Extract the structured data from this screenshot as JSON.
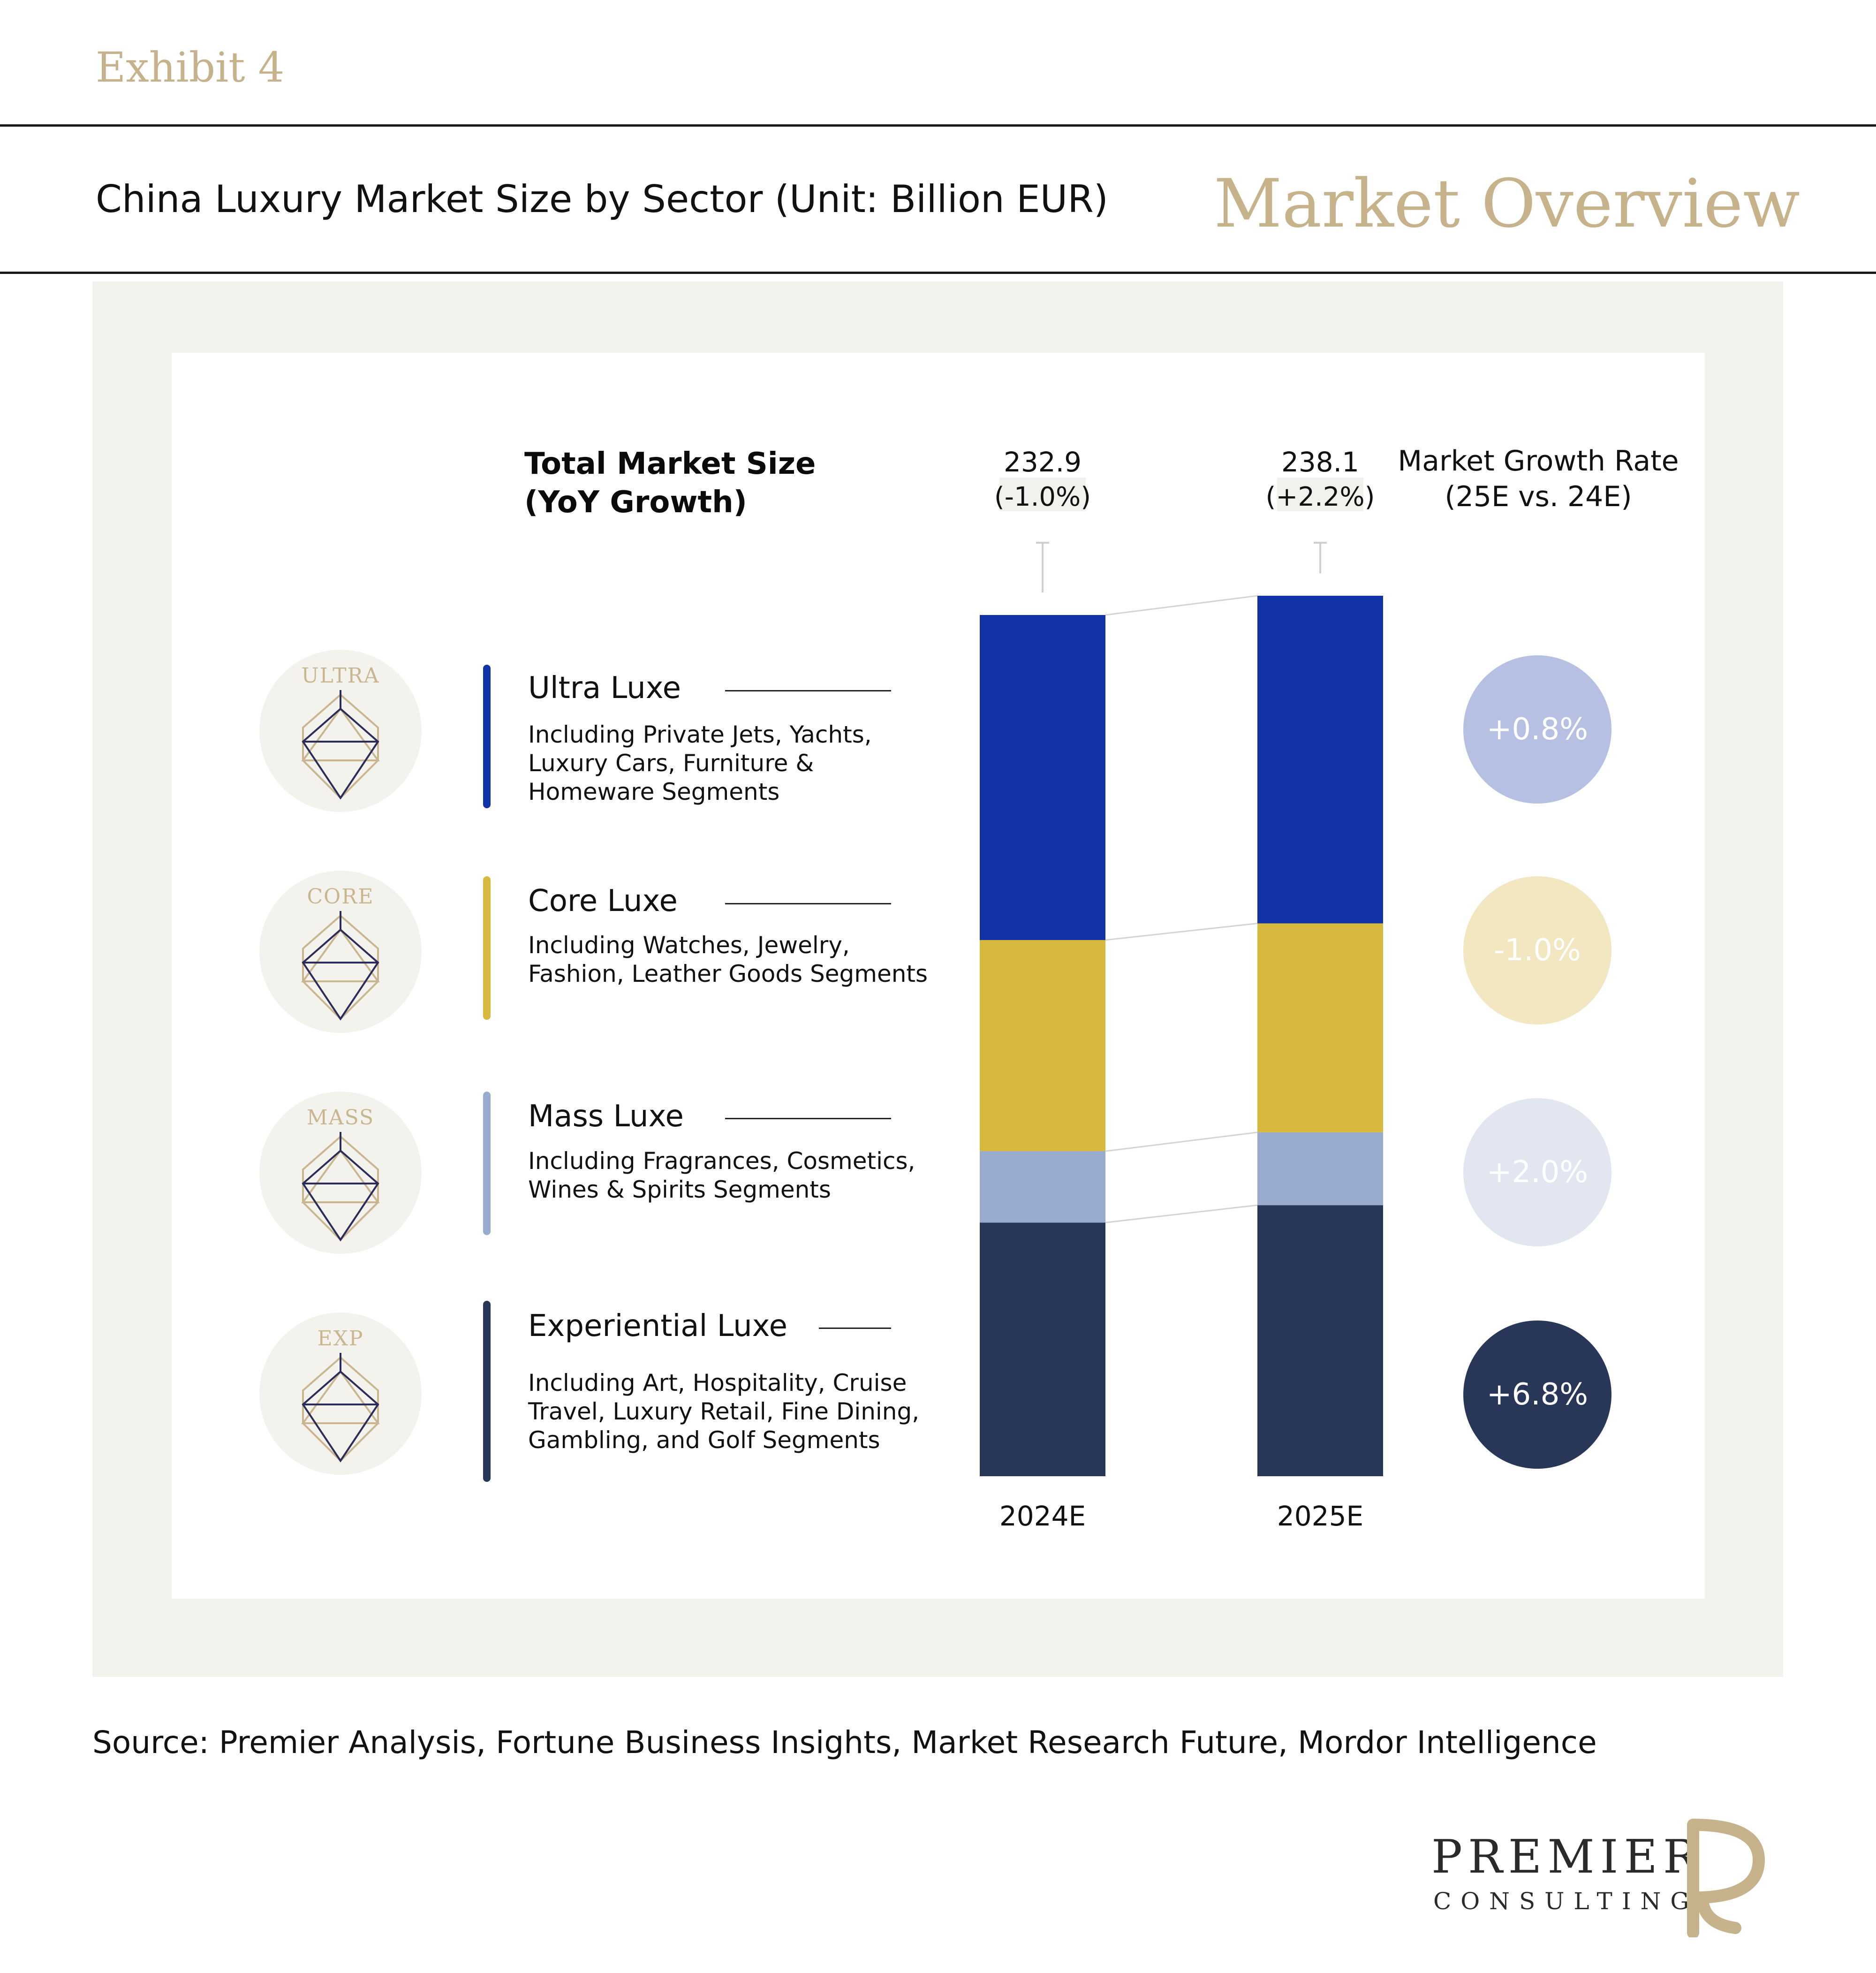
{
  "header": {
    "exhibit": "Exhibit 4",
    "subtitle": "China Luxury Market Size by Sector (Unit: Billion EUR)",
    "section": "Market Overview"
  },
  "legend_heading": {
    "line1": "Total Market Size",
    "line2": "(YoY Growth)"
  },
  "growth_heading": {
    "line1": "Market Growth Rate",
    "line2": "(25E vs. 24E)"
  },
  "segments": [
    {
      "tag": "ULTRA",
      "title": "Ultra Luxe",
      "desc": [
        "Including Private Jets, Yachts,",
        "Luxury Cars, Furniture &",
        "Homeware Segments"
      ],
      "growth": "+0.8%",
      "color": "#1233a8",
      "growth_color": "#b6c0e3",
      "icon": "diamond-icon"
    },
    {
      "tag": "CORE",
      "title": "Core Luxe",
      "desc": [
        "Including Watches, Jewelry,",
        "Fashion, Leather Goods Segments"
      ],
      "growth": "-1.0%",
      "color": "#d8b940",
      "growth_color": "#f2e7c1",
      "icon": "diamond-icon"
    },
    {
      "tag": "MASS",
      "title": "Mass Luxe",
      "desc": [
        "Including Fragrances, Cosmetics,",
        "Wines & Spirits Segments"
      ],
      "growth": "+2.0%",
      "color": "#9aabd0",
      "growth_color": "#e2e6f1",
      "icon": "diamond-icon"
    },
    {
      "tag": "EXP",
      "title": "Experiential Luxe",
      "desc": [
        "Including Art, Hospitality, Cruise",
        "Travel, Luxury Retail, Fine Dining,",
        "Gambling, and Golf Segments"
      ],
      "growth": "+6.8%",
      "color": "#283757",
      "growth_color": "#283757",
      "icon": "diamond-icon"
    }
  ],
  "chart_data": {
    "type": "bar",
    "stacked": true,
    "categories": [
      "2024E",
      "2025E"
    ],
    "totals": [
      232.9,
      238.1
    ],
    "total_labels": [
      "232.9",
      "238.1"
    ],
    "yoy_labels": [
      "(-1.0%)",
      "(+2.2%)"
    ],
    "series": [
      {
        "name": "Experiential Luxe",
        "values": [
          68.6,
          73.3
        ],
        "color": "#283757"
      },
      {
        "name": "Mass Luxe",
        "values": [
          19.3,
          19.7
        ],
        "color": "#9aabd0"
      },
      {
        "name": "Core Luxe",
        "values": [
          57.1,
          56.5
        ],
        "color": "#d8b940"
      },
      {
        "name": "Ultra Luxe",
        "values": [
          87.9,
          88.6
        ],
        "color": "#1233a8"
      }
    ],
    "xlabel": "",
    "ylabel": "",
    "ylim": [
      0,
      238.1
    ],
    "grid": false,
    "connectors": true
  },
  "source": "Source: Premier Analysis, Fortune Business Insights, Market Research Future, Mordor Intelligence",
  "logo": {
    "word": "PREMIER",
    "sub": "CONSULTING",
    "mark_color": "#c6b38c"
  }
}
